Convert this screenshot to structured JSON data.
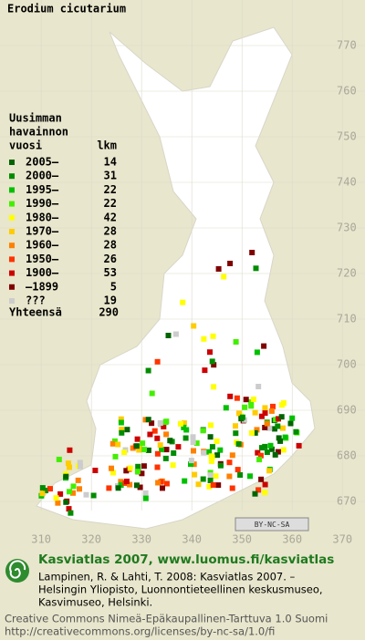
{
  "title": "Erodium cicutarium",
  "legend": {
    "heading": [
      "Uusimman",
      "havainnon",
      "vuosi"
    ],
    "count_header": "lkm",
    "entries": [
      {
        "label": "2005–",
        "count": 14,
        "color": "#006400"
      },
      {
        "label": "2000–",
        "count": 31,
        "color": "#008c00"
      },
      {
        "label": "1995–",
        "count": 22,
        "color": "#00c000"
      },
      {
        "label": "1990–",
        "count": 22,
        "color": "#44ee00"
      },
      {
        "label": "1980–",
        "count": 42,
        "color": "#ffff00"
      },
      {
        "label": "1970–",
        "count": 28,
        "color": "#ffcc00"
      },
      {
        "label": "1960–",
        "count": 28,
        "color": "#ff8000"
      },
      {
        "label": "1950–",
        "count": 26,
        "color": "#ff3300"
      },
      {
        "label": "1900–",
        "count": 53,
        "color": "#cc0000"
      },
      {
        "label": "–1899",
        "count": 5,
        "color": "#800000"
      },
      {
        "label": "???",
        "count": 19,
        "color": "#cccccc"
      }
    ],
    "total_label": "Yhteensä",
    "total": 290
  },
  "grid": {
    "ylim": [
      780,
      668
    ],
    "yticks": [
      770,
      760,
      750,
      740,
      730,
      720,
      710,
      700,
      690,
      680,
      670
    ],
    "xlim": [
      301.8,
      374.5
    ],
    "xticks": [
      310,
      320,
      330,
      340,
      350,
      360,
      370
    ]
  },
  "badge": "BY-NC-SA",
  "footer": {
    "brand": "Kasviatlas 2007, www.luomus.fi/kasviatlas",
    "citation": [
      "Lampinen, R. & Lahti, T. 2008: Kasviatlas 2007. –",
      "Helsingin Yliopisto, Luonnontieteellinen keskusmuseo,",
      "Kasvimuseo, Helsinki."
    ],
    "license": [
      "Creative Commons Nimeä-Epäkaupallinen-Tarttuva 1.0 Suomi",
      "http://creativecommons.org/licenses/by-nc-sa/1.0/fi"
    ]
  }
}
